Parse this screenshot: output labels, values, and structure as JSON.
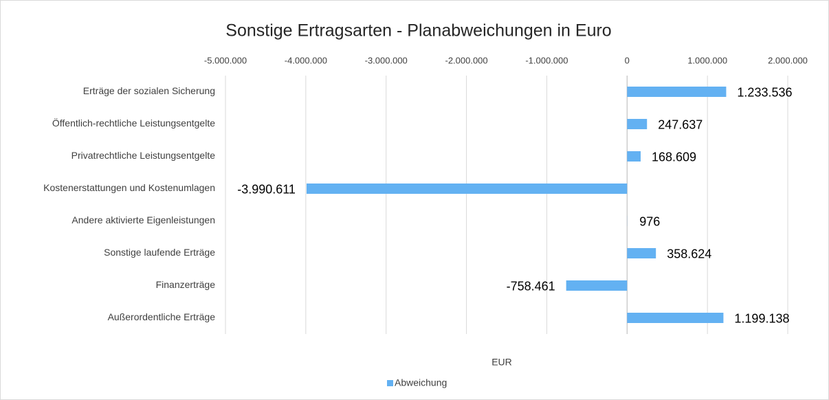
{
  "chart_data": {
    "type": "bar",
    "orientation": "horizontal",
    "title": "Sonstige Ertragsarten - Planabweichungen in Euro",
    "x_label": "EUR",
    "categories": [
      "Erträge der sozialen Sicherung",
      "Öffentlich-rechtliche Leistungsentgelte",
      "Privatrechtliche Leistungsentgelte",
      "Kostenerstattungen und Kostenumlagen",
      "Andere aktivierte Eigenleistungen",
      "Sonstige laufende Erträge",
      "Finanzerträge",
      "Außerordentliche Erträge"
    ],
    "series": [
      {
        "name": "Abweichung",
        "color": "#63b1f2",
        "values": [
          1233536,
          247637,
          168609,
          -3990611,
          976,
          358624,
          -758461,
          1199138
        ],
        "value_labels": [
          "1.233.536",
          "247.637",
          "168.609",
          "-3.990.611",
          "976",
          "358.624",
          "-758.461",
          "1.199.138"
        ]
      }
    ],
    "xlim": [
      -5000000,
      2000000
    ],
    "xticks": [
      {
        "value": -5000000,
        "label": "-5.000.000"
      },
      {
        "value": -4000000,
        "label": "-4.000.000"
      },
      {
        "value": -3000000,
        "label": "-3.000.000"
      },
      {
        "value": -2000000,
        "label": "-2.000.000"
      },
      {
        "value": -1000000,
        "label": "-1.000.000"
      },
      0,
      {
        "value": 1000000,
        "label": "1.000.000"
      },
      {
        "value": 2000000,
        "label": "2.000.000"
      }
    ],
    "grid": true,
    "legend": "bottom"
  }
}
